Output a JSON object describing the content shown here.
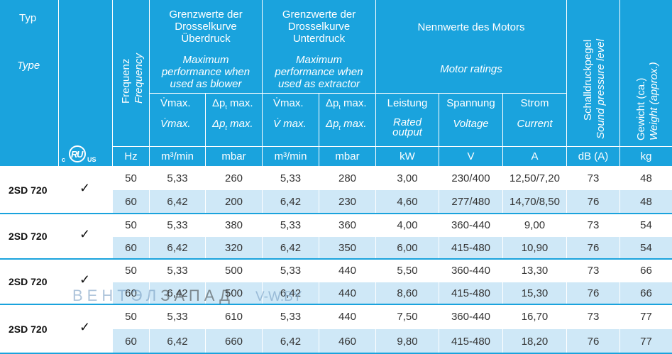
{
  "header": {
    "typ": "Typ",
    "type": "Type",
    "frequenz": "Frequenz",
    "frequency": "Frequency",
    "grenz_ueber_title": "Grenzwerte der Drosselkurve Überdruck",
    "grenz_ueber_sub": "Maximum performance when used as blower",
    "grenz_unter_title": "Grenzwerte der Drosselkurve Unterdruck",
    "grenz_unter_sub": "Maximum performance when used as extractor",
    "nenn_title": "Nennwerte des Motors",
    "nenn_sub": "Motor ratings",
    "schall_de": "Schalldruckpegel",
    "schall_en": "Sound pressure level",
    "gewicht_de": "Gewicht (ca.)",
    "gewicht_en": "Weight (approx.)",
    "vmax_de": "V̇max.",
    "vmax_en": "V̇max.",
    "vmax2_en": "V̇ max.",
    "dp_de": "Δpt max.",
    "dp_en": "Δpt max.",
    "leistung": "Leistung",
    "leistung_en": "Rated output",
    "spannung": "Spannung",
    "spannung_en": "Voltage",
    "strom": "Strom",
    "strom_en": "Current",
    "cert_mark": "c UL us"
  },
  "units": [
    "Hz",
    "m³/min",
    "mbar",
    "m³/min",
    "mbar",
    "kW",
    "V",
    "A",
    "dB (A)",
    "kg"
  ],
  "groups": [
    {
      "type": "2SD 720",
      "check": "✓",
      "rows": [
        [
          "50",
          "5,33",
          "260",
          "5,33",
          "280",
          "3,00",
          "230/400",
          "12,50/7,20",
          "73",
          "48"
        ],
        [
          "60",
          "6,42",
          "200",
          "6,42",
          "230",
          "4,60",
          "277/480",
          "14,70/8,50",
          "76",
          "48"
        ]
      ]
    },
    {
      "type": "2SD 720",
      "check": "✓",
      "rows": [
        [
          "50",
          "5,33",
          "380",
          "5,33",
          "360",
          "4,00",
          "360-440",
          "9,00",
          "73",
          "54"
        ],
        [
          "60",
          "6,42",
          "320",
          "6,42",
          "350",
          "6,00",
          "415-480",
          "10,90",
          "76",
          "54"
        ]
      ]
    },
    {
      "type": "2SD 720",
      "check": "✓",
      "rows": [
        [
          "50",
          "5,33",
          "500",
          "5,33",
          "440",
          "5,50",
          "360-440",
          "13,30",
          "73",
          "66"
        ],
        [
          "60",
          "6,42",
          "500",
          "6,42",
          "440",
          "8,60",
          "415-480",
          "15,30",
          "76",
          "66"
        ]
      ]
    },
    {
      "type": "2SD 720",
      "check": "✓",
      "rows": [
        [
          "50",
          "5,33",
          "610",
          "5,33",
          "440",
          "7,50",
          "360-440",
          "16,70",
          "73",
          "77"
        ],
        [
          "60",
          "6,42",
          "660",
          "6,42",
          "460",
          "9,80",
          "415-480",
          "18,20",
          "76",
          "77"
        ]
      ]
    }
  ],
  "watermark": {
    "part1": "ВЕНТЭЛ",
    "part2": "ЗАПАД",
    "site": "V-W.BY"
  },
  "colors": {
    "header_bg": "#1aa3dd",
    "row_light": "#cfe8f7",
    "row_white": "#ffffff"
  }
}
